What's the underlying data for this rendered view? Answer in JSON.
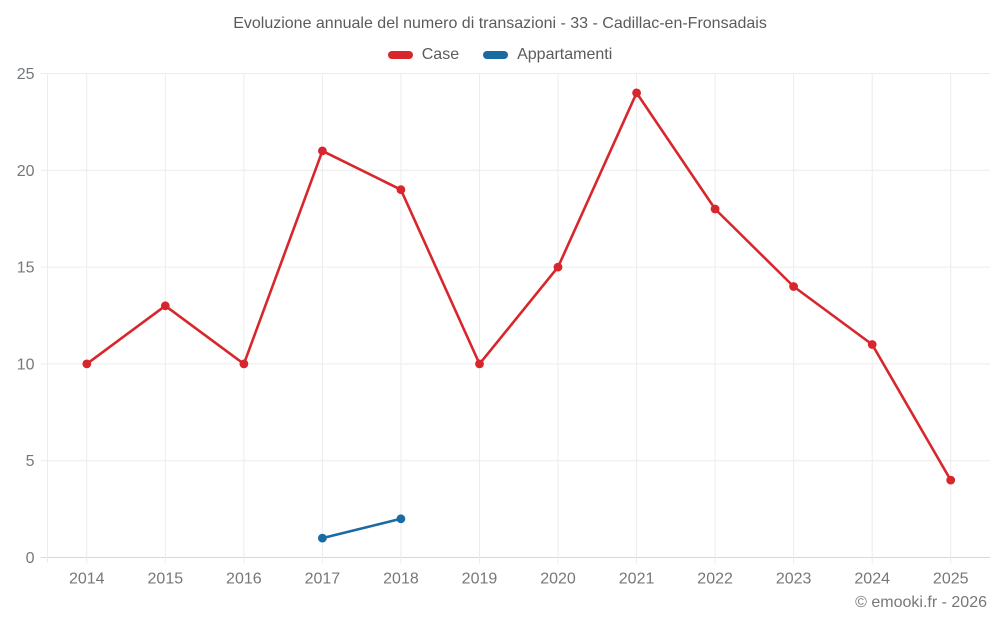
{
  "header": {
    "title": "Evoluzione annuale del numero di transazioni - 33 - Cadillac-en-Fronsadais"
  },
  "legend": {
    "items": [
      {
        "label": "Case",
        "color": "#d7272d"
      },
      {
        "label": "Appartamenti",
        "color": "#1a6ba3"
      }
    ]
  },
  "footer": {
    "copyright": "© emooki.fr - 2026"
  },
  "colors": {
    "grid": "#ececec",
    "axis": "#d9d9d9",
    "axis_text": "#75787b",
    "title_text": "#5a5b5d"
  },
  "chart_data": {
    "type": "line",
    "title": "Evoluzione annuale del numero di transazioni - 33 - Cadillac-en-Fronsadais",
    "categories": [
      "2014",
      "2015",
      "2016",
      "2017",
      "2018",
      "2019",
      "2020",
      "2021",
      "2022",
      "2023",
      "2024",
      "2025"
    ],
    "series": [
      {
        "name": "Case",
        "color": "#d7272d",
        "values": [
          10,
          13,
          10,
          21,
          19,
          10,
          15,
          24,
          18,
          14,
          11,
          4
        ]
      },
      {
        "name": "Appartamenti",
        "color": "#1a6ba3",
        "values": [
          null,
          null,
          null,
          1,
          2,
          null,
          null,
          null,
          null,
          null,
          null,
          null
        ]
      }
    ],
    "xlabel": "",
    "ylabel": "",
    "ylim": [
      0,
      25
    ],
    "yticks": [
      0,
      5,
      10,
      15,
      20,
      25
    ],
    "grid": true,
    "legend_position": "top"
  }
}
